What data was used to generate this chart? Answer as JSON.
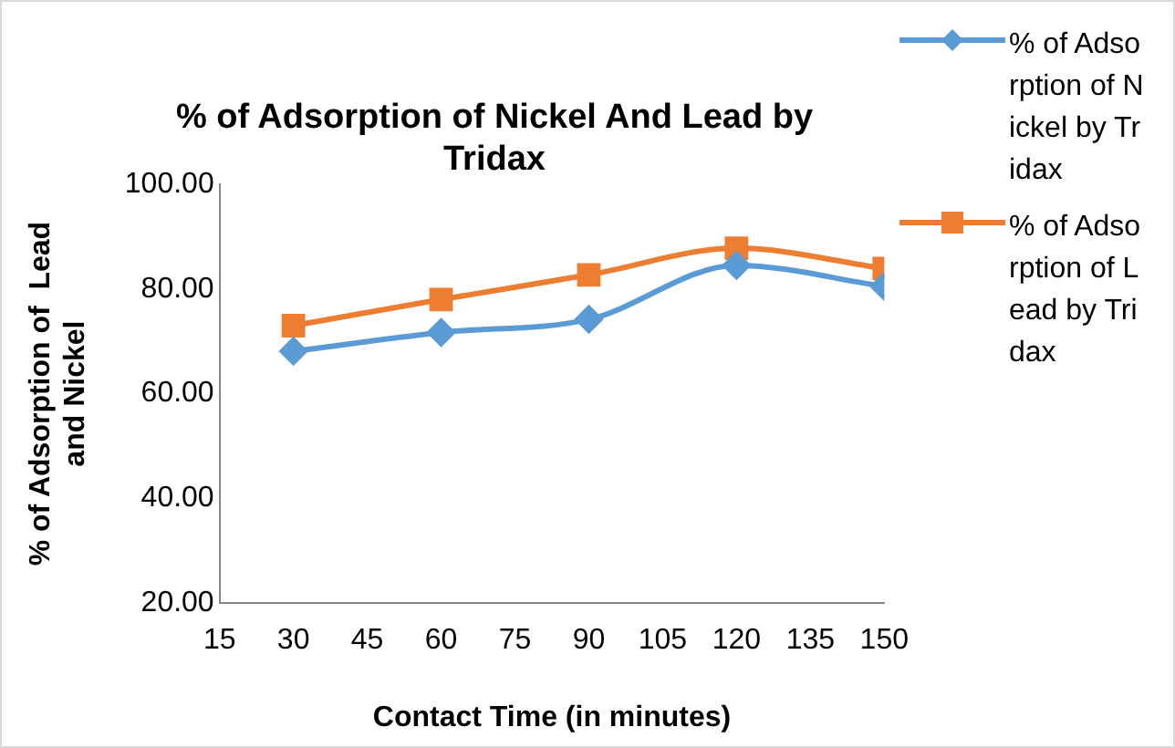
{
  "chart_data": {
    "type": "line",
    "title": "% of Adsorption of Nickel And Lead by Tridax",
    "xlabel": "Contact Time (in minutes)",
    "ylabel": "% of Adsorption of  Lead and Nickel",
    "x": [
      30,
      60,
      90,
      120,
      150
    ],
    "series": [
      {
        "name": "% of Adsorption of Nickel by Tridax",
        "color": "#5b9bd5",
        "marker": "diamond",
        "values": [
          68.1,
          71.7,
          74.2,
          84.5,
          80.5
        ]
      },
      {
        "name": "% of Adsorption of Lead by Tridax",
        "color": "#ed7d31",
        "marker": "square",
        "values": [
          73.0,
          78.0,
          82.7,
          87.8,
          83.9
        ]
      }
    ],
    "xlim": [
      15,
      150
    ],
    "xticks": [
      15,
      30,
      45,
      60,
      75,
      90,
      105,
      120,
      135,
      150
    ],
    "ylim": [
      20,
      100
    ],
    "yticks": [
      {
        "value": 20,
        "label": "20.00"
      },
      {
        "value": 40,
        "label": "40.00"
      },
      {
        "value": 60,
        "label": "60.00"
      },
      {
        "value": 80,
        "label": "80.00"
      },
      {
        "value": 100,
        "label": "100.00"
      }
    ],
    "grid": false,
    "legend": "right",
    "line_style": "solid"
  }
}
